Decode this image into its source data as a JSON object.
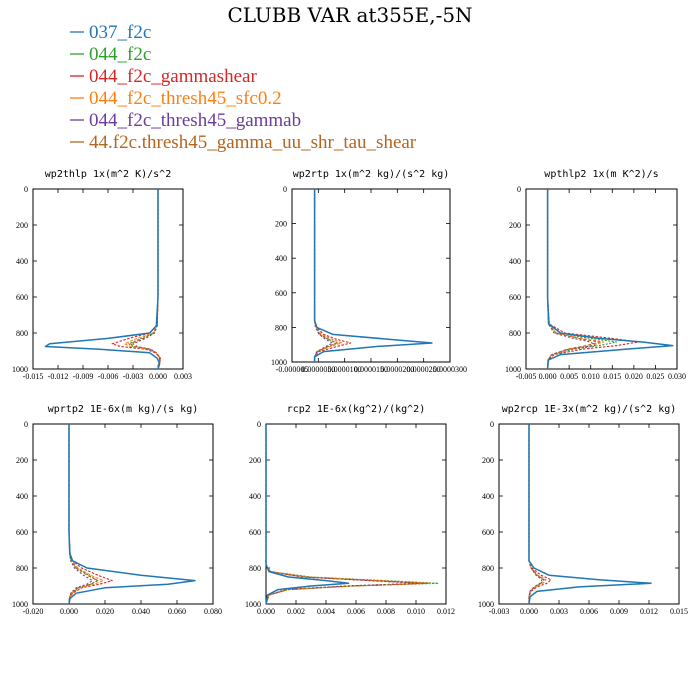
{
  "title": "CLUBB VAR at355E,-5N",
  "legend": [
    {
      "name": "037_f2c",
      "color": "#1f77b4"
    },
    {
      "name": "044_f2c",
      "color": "#2ca02c"
    },
    {
      "name": "044_f2c_gammashear",
      "color": "#d62728"
    },
    {
      "name": "044_f2c_thresh45_sfc0.2",
      "color": "#ff7f0e"
    },
    {
      "name": "044_f2c_thresh45_gammab",
      "color": "#6a3d9a"
    },
    {
      "name": "44.f2c.thresh45_gamma_uu_shr_tau_shear",
      "color": "#b5651d"
    }
  ],
  "colors": {
    "037_f2c": "#1f77b4",
    "044_f2c": "#2ca02c",
    "044_f2c_gammashear": "#d62728",
    "044_f2c_thresh45_sfc0.2": "#ff7f0e",
    "044_f2c_thresh45_gammab": "#6a3d9a",
    "44.f2c.thresh45_gamma_uu_shr_tau_shear": "#b5651d"
  },
  "chart_data": [
    {
      "type": "line",
      "title": "wp2thlp  1x(m^2 K)/s^2",
      "xlim": [
        -0.015,
        0.003
      ],
      "xticks": [
        "-0.015",
        "-0.012",
        "-0.009",
        "-0.006",
        "-0.003",
        "0.000",
        "0.003"
      ],
      "ylim": [
        1000,
        0
      ],
      "yticks": [
        "0",
        "200",
        "400",
        "600",
        "800",
        "1000"
      ],
      "y": [
        0,
        300,
        600,
        760,
        800,
        830,
        860,
        875,
        890,
        910,
        940,
        970,
        1000
      ],
      "series": [
        {
          "name": "037_f2c",
          "x": [
            0.0,
            0.0,
            0.0,
            -0.0002,
            -0.001,
            -0.006,
            -0.013,
            -0.0135,
            -0.007,
            -0.001,
            -0.0001,
            0.0002,
            0.0
          ]
        },
        {
          "name": "044_f2c",
          "x": [
            0.0,
            0.0,
            0.0,
            -0.0001,
            -0.0005,
            -0.002,
            -0.0035,
            -0.003,
            -0.001,
            -0.0002,
            0.0002,
            0.0001,
            0.0
          ]
        },
        {
          "name": "044_f2c_gammashear",
          "x": [
            0.0,
            0.0,
            0.0,
            -0.0001,
            -0.001,
            -0.0035,
            -0.0055,
            -0.0045,
            -0.0015,
            -0.0003,
            0.0003,
            0.0002,
            0.0
          ]
        },
        {
          "name": "044_f2c_thresh45_sfc0.2",
          "x": [
            0.0,
            0.0,
            0.0,
            -0.0001,
            -0.0006,
            -0.0025,
            -0.004,
            -0.0033,
            -0.0012,
            -0.0002,
            0.0002,
            0.0001,
            0.0
          ]
        },
        {
          "name": "044_f2c_thresh45_gammab",
          "x": [
            0.0,
            0.0,
            0.0,
            -0.0001,
            -0.0004,
            -0.0015,
            -0.003,
            -0.0025,
            -0.0009,
            -0.0002,
            0.0002,
            0.0001,
            0.0
          ]
        },
        {
          "name": "44.f2c.thresh45_gamma_uu_shr_tau_shear",
          "x": [
            0.0,
            0.0,
            0.0,
            -0.0001,
            -0.0005,
            -0.0018,
            -0.0033,
            -0.0028,
            -0.001,
            -0.0002,
            0.0003,
            0.0001,
            0.0
          ]
        }
      ]
    },
    {
      "type": "line",
      "title": "wp2rtp  1x(m^2 kg)/(s^2 kg)",
      "xlim": [
        -5e-06,
        3e-05
      ],
      "xticks": [
        "-0.000005",
        "0.0000050",
        "0.0000100",
        "0.0000150",
        "0.0000200",
        "0.0000250",
        "0.0000300"
      ],
      "ylim": [
        1000,
        0
      ],
      "yticks": [
        "0",
        "200",
        "400",
        "600",
        "800",
        "1000"
      ],
      "y": [
        0,
        300,
        600,
        760,
        800,
        840,
        870,
        890,
        910,
        940,
        970,
        1000
      ],
      "series": [
        {
          "name": "037_f2c",
          "x": [
            0.0,
            0.0,
            0.0,
            0.0,
            5e-07,
            4e-06,
            1.7e-05,
            2.6e-05,
            1.4e-05,
            2e-06,
            0.0,
            0.0
          ]
        },
        {
          "name": "044_f2c",
          "x": [
            0.0,
            0.0,
            0.0,
            0.0,
            3e-07,
            1e-06,
            3e-06,
            5e-06,
            3e-06,
            5e-07,
            0.0,
            0.0
          ]
        },
        {
          "name": "044_f2c_gammashear",
          "x": [
            0.0,
            0.0,
            0.0,
            0.0,
            5e-07,
            2e-06,
            5e-06,
            8e-06,
            5e-06,
            1e-06,
            0.0,
            0.0
          ]
        },
        {
          "name": "044_f2c_thresh45_sfc0.2",
          "x": [
            0.0,
            0.0,
            0.0,
            0.0,
            3e-07,
            1.5e-06,
            4e-06,
            6e-06,
            3.5e-06,
            7e-07,
            0.0,
            0.0
          ]
        },
        {
          "name": "044_f2c_thresh45_gammab",
          "x": [
            0.0,
            0.0,
            0.0,
            0.0,
            2e-07,
            1e-06,
            2.5e-06,
            4e-06,
            2.5e-06,
            5e-07,
            0.0,
            0.0
          ]
        },
        {
          "name": "44.f2c.thresh45_gamma_uu_shr_tau_shear",
          "x": [
            0.0,
            0.0,
            0.0,
            0.0,
            3e-07,
            1.2e-06,
            3.2e-06,
            5e-06,
            3e-06,
            6e-07,
            0.0,
            0.0
          ]
        }
      ]
    },
    {
      "type": "line",
      "title": "wpthlp2  1x(m K^2)/s",
      "xlim": [
        -0.005,
        0.03
      ],
      "xticks": [
        "-0.005",
        "0.000",
        "0.005",
        "0.010",
        "0.015",
        "0.020",
        "0.025",
        "0.030"
      ],
      "ylim": [
        1000,
        0
      ],
      "yticks": [
        "0",
        "200",
        "400",
        "600",
        "800",
        "1000"
      ],
      "y": [
        0,
        300,
        600,
        750,
        800,
        830,
        850,
        870,
        890,
        920,
        950,
        1000
      ],
      "series": [
        {
          "name": "037_f2c",
          "x": [
            0.0,
            0.0,
            0.0,
            0.0003,
            0.003,
            0.012,
            0.022,
            0.029,
            0.018,
            0.003,
            0.0002,
            0.0
          ]
        },
        {
          "name": "044_f2c",
          "x": [
            0.0,
            0.0,
            0.0,
            0.0002,
            0.002,
            0.01,
            0.016,
            0.012,
            0.006,
            0.001,
            0.0001,
            0.0
          ]
        },
        {
          "name": "044_f2c_gammashear",
          "x": [
            0.0,
            0.0,
            0.0,
            0.0004,
            0.004,
            0.015,
            0.021,
            0.016,
            0.008,
            0.0015,
            0.0002,
            0.0
          ]
        },
        {
          "name": "044_f2c_thresh45_sfc0.2",
          "x": [
            0.0,
            0.0,
            0.0,
            0.0002,
            0.002,
            0.008,
            0.013,
            0.01,
            0.005,
            0.001,
            0.0001,
            0.0
          ]
        },
        {
          "name": "044_f2c_thresh45_gammab",
          "x": [
            0.0,
            0.0,
            0.0,
            0.0002,
            0.0015,
            0.006,
            0.01,
            0.011,
            0.005,
            0.001,
            0.0001,
            0.0
          ]
        },
        {
          "name": "44.f2c.thresh45_gamma_uu_shr_tau_shear",
          "x": [
            0.0,
            0.0,
            0.0,
            0.0002,
            0.0018,
            0.007,
            0.012,
            0.009,
            0.0045,
            0.0009,
            0.0001,
            0.0
          ]
        }
      ]
    },
    {
      "type": "line",
      "title": "wprtp2  1E-6x(m kg)/(s kg)",
      "xlim": [
        -0.02,
        0.08
      ],
      "xticks": [
        "-0.020",
        "0.000",
        "0.020",
        "0.040",
        "0.060",
        "0.080"
      ],
      "ylim": [
        1000,
        0
      ],
      "yticks": [
        "0",
        "200",
        "400",
        "600",
        "800",
        "1000"
      ],
      "y": [
        0,
        300,
        600,
        720,
        760,
        800,
        840,
        870,
        890,
        910,
        940,
        970,
        1000
      ],
      "series": [
        {
          "name": "037_f2c",
          "x": [
            0.0,
            0.0,
            0.0,
            0.0005,
            0.002,
            0.01,
            0.04,
            0.07,
            0.055,
            0.02,
            0.004,
            0.0005,
            0.0
          ]
        },
        {
          "name": "044_f2c",
          "x": [
            0.0,
            0.0,
            0.0,
            0.0003,
            0.001,
            0.004,
            0.011,
            0.016,
            0.012,
            0.005,
            0.001,
            0.0002,
            0.0
          ]
        },
        {
          "name": "044_f2c_gammashear",
          "x": [
            0.0,
            0.0,
            0.0,
            0.0006,
            0.002,
            0.007,
            0.016,
            0.024,
            0.017,
            0.007,
            0.002,
            0.0003,
            0.0
          ]
        },
        {
          "name": "044_f2c_thresh45_sfc0.2",
          "x": [
            0.0,
            0.0,
            0.0,
            0.0004,
            0.0015,
            0.005,
            0.012,
            0.019,
            0.014,
            0.006,
            0.0015,
            0.0002,
            0.0
          ]
        },
        {
          "name": "044_f2c_thresh45_gammab",
          "x": [
            0.0,
            0.0,
            0.0,
            0.0003,
            0.001,
            0.003,
            0.008,
            0.013,
            0.01,
            0.004,
            0.001,
            0.0002,
            0.0
          ]
        },
        {
          "name": "44.f2c.thresh45_gamma_uu_shr_tau_shear",
          "x": [
            0.0,
            0.0,
            0.0,
            0.0004,
            0.0012,
            0.004,
            0.01,
            0.016,
            0.012,
            0.005,
            0.0012,
            0.0002,
            0.0
          ]
        }
      ]
    },
    {
      "type": "line",
      "title": "rcp2  1E-6x(kg^2)/(kg^2)",
      "xlim": [
        0.0,
        0.012
      ],
      "xticks": [
        "0.000",
        "0.002",
        "0.004",
        "0.006",
        "0.008",
        "0.010",
        "0.012"
      ],
      "ylim": [
        1000,
        0
      ],
      "yticks": [
        "0",
        "200",
        "400",
        "600",
        "800",
        "1000"
      ],
      "y": [
        0,
        300,
        600,
        780,
        820,
        850,
        870,
        885,
        900,
        920,
        950,
        1000
      ],
      "series": [
        {
          "name": "037_f2c",
          "x": [
            0.0,
            0.0,
            0.0,
            0.0,
            0.0002,
            0.0015,
            0.004,
            0.0055,
            0.003,
            0.0008,
            0.0001,
            0.0
          ]
        },
        {
          "name": "044_f2c",
          "x": [
            0.0,
            0.0,
            0.0,
            0.0,
            0.0003,
            0.003,
            0.008,
            0.0115,
            0.006,
            0.0015,
            0.0002,
            0.0
          ]
        },
        {
          "name": "044_f2c_gammashear",
          "x": [
            0.0,
            0.0,
            0.0,
            0.0,
            0.0003,
            0.0025,
            0.007,
            0.0105,
            0.0055,
            0.0014,
            0.0002,
            0.0
          ]
        },
        {
          "name": "044_f2c_thresh45_sfc0.2",
          "x": [
            0.0,
            0.0,
            0.0,
            0.0,
            0.0003,
            0.0028,
            0.0075,
            0.011,
            0.0058,
            0.0015,
            0.0002,
            0.0
          ]
        },
        {
          "name": "044_f2c_thresh45_gammab",
          "x": [
            0.0,
            0.0,
            0.0,
            0.0,
            0.0002,
            0.0024,
            0.0068,
            0.0102,
            0.0052,
            0.0013,
            0.0002,
            0.0
          ]
        },
        {
          "name": "44.f2c.thresh45_gamma_uu_shr_tau_shear",
          "x": [
            0.0,
            0.0,
            0.0,
            0.0,
            0.0002,
            0.0026,
            0.0072,
            0.0108,
            0.0056,
            0.0014,
            0.0002,
            0.0
          ]
        }
      ]
    },
    {
      "type": "line",
      "title": "wp2rcp  1E-3x(m^2 kg)/(s^2 kg)",
      "xlim": [
        -0.003,
        0.015
      ],
      "xticks": [
        "-0.003",
        "0.000",
        "0.003",
        "0.006",
        "0.009",
        "0.012",
        "0.015"
      ],
      "ylim": [
        1000,
        0
      ],
      "yticks": [
        "0",
        "200",
        "400",
        "600",
        "800",
        "1000"
      ],
      "y": [
        0,
        300,
        600,
        760,
        800,
        840,
        865,
        885,
        905,
        930,
        960,
        1000
      ],
      "series": [
        {
          "name": "037_f2c",
          "x": [
            0.0,
            0.0,
            0.0,
            0.0,
            0.0005,
            0.002,
            0.007,
            0.0122,
            0.005,
            0.0008,
            0.0001,
            0.0
          ]
        },
        {
          "name": "044_f2c",
          "x": [
            0.0,
            0.0,
            0.0,
            0.0,
            0.0002,
            0.0008,
            0.0015,
            0.0012,
            0.0006,
            0.0001,
            0.0,
            0.0
          ]
        },
        {
          "name": "044_f2c_gammashear",
          "x": [
            0.0,
            0.0,
            0.0,
            0.0,
            0.0003,
            0.0012,
            0.0022,
            0.0018,
            0.0008,
            0.0002,
            0.0,
            0.0
          ]
        },
        {
          "name": "044_f2c_thresh45_sfc0.2",
          "x": [
            0.0,
            0.0,
            0.0,
            0.0,
            0.0002,
            0.0009,
            0.0017,
            0.0014,
            0.0006,
            0.0001,
            0.0,
            0.0
          ]
        },
        {
          "name": "044_f2c_thresh45_gammab",
          "x": [
            0.0,
            0.0,
            0.0,
            0.0,
            0.0002,
            0.0007,
            0.0013,
            0.0011,
            0.0005,
            0.0001,
            0.0,
            0.0
          ]
        },
        {
          "name": "44.f2c.thresh45_gamma_uu_shr_tau_shear",
          "x": [
            0.0,
            0.0,
            0.0,
            0.0,
            0.0002,
            0.0008,
            0.0015,
            0.0012,
            0.0005,
            0.0001,
            0.0,
            0.0
          ]
        }
      ]
    }
  ]
}
